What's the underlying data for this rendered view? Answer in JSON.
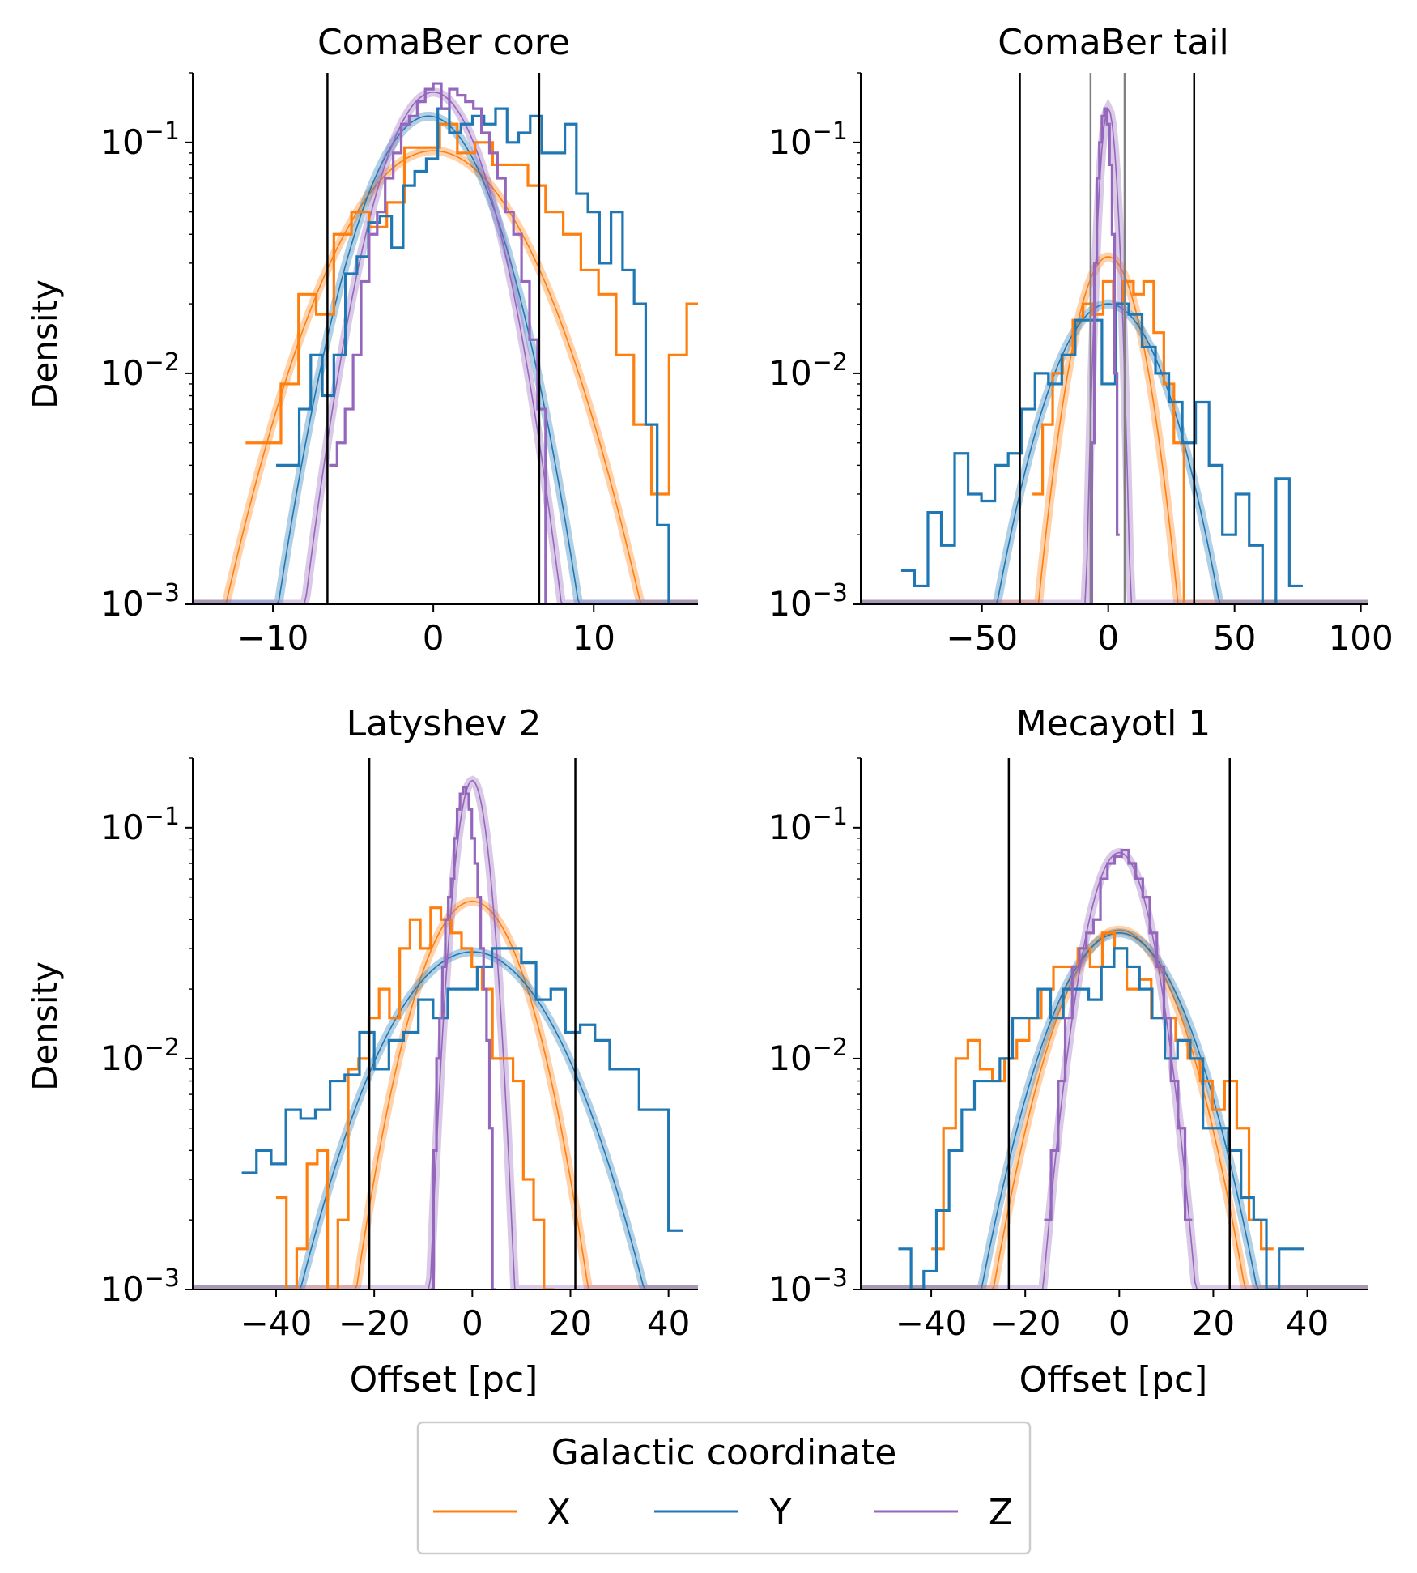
{
  "figure": {
    "y_axis_label": "Density",
    "x_axis_label": "Offset [pc]"
  },
  "legend": {
    "title": "Galactic coordinate",
    "items": [
      {
        "label": "X",
        "color": "#ff7f0e"
      },
      {
        "label": "Y",
        "color": "#1f77b4"
      },
      {
        "label": "Z",
        "color": "#9467bd"
      }
    ]
  },
  "chart_data": [
    {
      "type": "histogram+line",
      "title": "ComaBer core",
      "xlabel": "",
      "ylabel": "Density",
      "yscale": "log",
      "xlim": [
        -15,
        16.5
      ],
      "ylim": [
        0.001,
        0.2
      ],
      "xticks": [
        {
          "v": -10,
          "l": "−10"
        },
        {
          "v": 0,
          "l": "0"
        },
        {
          "v": 10,
          "l": "10"
        }
      ],
      "vlines": [
        {
          "x": -6.6,
          "color": "#000000"
        },
        {
          "x": 6.6,
          "color": "#000000"
        }
      ],
      "curves": [
        {
          "series": "X",
          "color": "#ff7f0e",
          "mu": 0,
          "sigma": 4.3,
          "amp": 0.092
        },
        {
          "series": "Y",
          "color": "#1f77b4",
          "mu": -0.3,
          "sigma": 3.0,
          "amp": 0.13
        },
        {
          "series": "Z",
          "color": "#9467bd",
          "mu": 0,
          "sigma": 2.5,
          "amp": 0.165
        }
      ],
      "histograms": [
        {
          "series": "X",
          "color": "#ff7f0e",
          "x0": -11.7,
          "width": 1.1,
          "values": [
            0.005,
            0.005,
            0.009,
            0.022,
            0.018,
            0.04,
            0.05,
            0.043,
            0.055,
            0.095,
            0.095,
            0.12,
            0.09,
            0.1,
            0.08,
            0.08,
            0.065,
            0.05,
            0.04,
            0.028,
            0.022,
            0.012,
            0.006,
            0.003,
            0.012,
            0.02,
            0.017,
            0.0023
          ]
        },
        {
          "series": "Y",
          "color": "#1f77b4",
          "x0": -9.8,
          "width": 0.72,
          "values": [
            0.004,
            0.004,
            0.007,
            0.012,
            0.008,
            0.012,
            0.027,
            0.032,
            0.045,
            0.048,
            0.035,
            0.065,
            0.075,
            0.085,
            0.14,
            0.11,
            0.12,
            0.13,
            0.12,
            0.14,
            0.1,
            0.11,
            0.13,
            0.09,
            0.09,
            0.12,
            0.06,
            0.05,
            0.03,
            0.05,
            0.028,
            0.02,
            0.006,
            0.0022,
            0.001
          ]
        },
        {
          "series": "Z",
          "color": "#9467bd",
          "x0": -6.5,
          "width": 0.5,
          "values": [
            0.004,
            0.005,
            0.007,
            0.012,
            0.025,
            0.04,
            0.05,
            0.07,
            0.09,
            0.12,
            0.13,
            0.15,
            0.17,
            0.18,
            0.14,
            0.17,
            0.16,
            0.15,
            0.14,
            0.11,
            0.09,
            0.07,
            0.05,
            0.04,
            0.025,
            0.014,
            0.007,
            0.001
          ]
        }
      ]
    },
    {
      "type": "histogram+line",
      "title": "ComaBer tail",
      "xlabel": "",
      "ylabel": "",
      "yscale": "log",
      "xlim": [
        -98,
        103
      ],
      "ylim": [
        0.001,
        0.2
      ],
      "xticks": [
        {
          "v": -50,
          "l": "−50"
        },
        {
          "v": 0,
          "l": "0"
        },
        {
          "v": 50,
          "l": "50"
        },
        {
          "v": 100,
          "l": "100"
        }
      ],
      "vlines": [
        {
          "x": -35,
          "color": "#000000"
        },
        {
          "x": 34,
          "color": "#000000"
        },
        {
          "x": -7,
          "color": "#808080"
        },
        {
          "x": 6.5,
          "color": "#808080"
        }
      ],
      "curves": [
        {
          "series": "X",
          "color": "#ff7f0e",
          "mu": 0,
          "sigma": 10.5,
          "amp": 0.032
        },
        {
          "series": "Y",
          "color": "#1f77b4",
          "mu": 0,
          "sigma": 18,
          "amp": 0.02
        },
        {
          "series": "Z",
          "color": "#9467bd",
          "mu": 0,
          "sigma": 2.8,
          "amp": 0.14
        }
      ],
      "histograms": [
        {
          "series": "X",
          "color": "#ff7f0e",
          "x0": -30,
          "width": 4,
          "values": [
            0.003,
            0.006,
            0.01,
            0.012,
            0.017,
            0.02,
            0.018,
            0.025,
            0.02,
            0.025,
            0.022,
            0.025,
            0.015,
            0.009,
            0.005,
            0.001
          ]
        },
        {
          "series": "Y",
          "color": "#1f77b4",
          "x0": -82,
          "width": 5.3,
          "values": [
            0.0014,
            0.0012,
            0.0025,
            0.0018,
            0.0045,
            0.003,
            0.0028,
            0.004,
            0.0045,
            0.007,
            0.01,
            0.009,
            0.012,
            0.017,
            0.017,
            0.009,
            0.02,
            0.018,
            0.013,
            0.01,
            0.0075,
            0.005,
            0.0075,
            0.004,
            0.002,
            0.003,
            0.0018,
            0.001,
            0.0035,
            0.0012
          ]
        },
        {
          "series": "Z",
          "color": "#9467bd",
          "x0": -7.5,
          "width": 1,
          "values": [
            0.001,
            0.005,
            0.03,
            0.07,
            0.1,
            0.13,
            0.14,
            0.12,
            0.08,
            0.04,
            0.01,
            0.002
          ]
        }
      ]
    },
    {
      "type": "histogram+line",
      "title": "Latyshev 2",
      "xlabel": "Offset [pc]",
      "ylabel": "Density",
      "yscale": "log",
      "xlim": [
        -57,
        46
      ],
      "ylim": [
        0.001,
        0.2
      ],
      "xticks": [
        {
          "v": -40,
          "l": "−40"
        },
        {
          "v": -20,
          "l": "−20"
        },
        {
          "v": 0,
          "l": "0"
        },
        {
          "v": 20,
          "l": "20"
        },
        {
          "v": 40,
          "l": "40"
        }
      ],
      "vlines": [
        {
          "x": -21,
          "color": "#000000"
        },
        {
          "x": 21,
          "color": "#000000"
        }
      ],
      "curves": [
        {
          "series": "X",
          "color": "#ff7f0e",
          "mu": 0,
          "sigma": 8.5,
          "amp": 0.048
        },
        {
          "series": "Y",
          "color": "#1f77b4",
          "mu": 0,
          "sigma": 13.5,
          "amp": 0.029
        },
        {
          "series": "Z",
          "color": "#9467bd",
          "mu": 0,
          "sigma": 2.7,
          "amp": 0.16
        }
      ],
      "histograms": [
        {
          "series": "X",
          "color": "#ff7f0e",
          "x0": -40,
          "width": 2.1,
          "values": [
            0.0025,
            0.001,
            0.0015,
            0.0035,
            0.004,
            0.001,
            0.002,
            0.009,
            0.01,
            0.015,
            0.02,
            0.015,
            0.03,
            0.04,
            0.03,
            0.045,
            0.04,
            0.035,
            0.03,
            0.025,
            0.02,
            0.01,
            0.01,
            0.008,
            0.003,
            0.002,
            0.001
          ]
        },
        {
          "series": "Y",
          "color": "#1f77b4",
          "x0": -47,
          "width": 3,
          "values": [
            0.0032,
            0.004,
            0.0035,
            0.006,
            0.0055,
            0.006,
            0.008,
            0.0085,
            0.013,
            0.009,
            0.012,
            0.013,
            0.018,
            0.015,
            0.02,
            0.02,
            0.025,
            0.03,
            0.03,
            0.026,
            0.018,
            0.02,
            0.013,
            0.014,
            0.012,
            0.009,
            0.009,
            0.006,
            0.006,
            0.0018
          ]
        },
        {
          "series": "Z",
          "color": "#9467bd",
          "x0": -8.5,
          "width": 0.6,
          "values": [
            0.001,
            0.004,
            0.01,
            0.015,
            0.025,
            0.04,
            0.05,
            0.06,
            0.09,
            0.12,
            0.14,
            0.15,
            0.14,
            0.12,
            0.09,
            0.07,
            0.05,
            0.03,
            0.02,
            0.012,
            0.005,
            0.001
          ]
        }
      ]
    },
    {
      "type": "histogram+line",
      "title": "Mecayotl 1",
      "xlabel": "Offset [pc]",
      "ylabel": "",
      "yscale": "log",
      "xlim": [
        -55,
        53
      ],
      "ylim": [
        0.001,
        0.2
      ],
      "xticks": [
        {
          "v": -40,
          "l": "−40"
        },
        {
          "v": -20,
          "l": "−20"
        },
        {
          "v": 0,
          "l": "0"
        },
        {
          "v": 20,
          "l": "20"
        },
        {
          "v": 40,
          "l": "40"
        }
      ],
      "vlines": [
        {
          "x": -23.5,
          "color": "#000000"
        },
        {
          "x": 23.5,
          "color": "#000000"
        }
      ],
      "curves": [
        {
          "series": "X",
          "color": "#ff7f0e",
          "mu": 0,
          "sigma": 10,
          "amp": 0.036
        },
        {
          "series": "Y",
          "color": "#1f77b4",
          "mu": 0,
          "sigma": 11,
          "amp": 0.035
        },
        {
          "series": "Z",
          "color": "#9467bd",
          "mu": 0,
          "sigma": 5.5,
          "amp": 0.078
        }
      ],
      "histograms": [
        {
          "series": "X",
          "color": "#ff7f0e",
          "x0": -40,
          "width": 2.6,
          "values": [
            0.0015,
            0.005,
            0.01,
            0.012,
            0.009,
            0.008,
            0.01,
            0.012,
            0.015,
            0.02,
            0.025,
            0.025,
            0.03,
            0.025,
            0.035,
            0.03,
            0.02,
            0.022,
            0.015,
            0.015,
            0.012,
            0.01,
            0.008,
            0.006,
            0.008,
            0.005,
            0.002,
            0.0015
          ]
        },
        {
          "series": "Y",
          "color": "#1f77b4",
          "x0": -47,
          "width": 2.7,
          "values": [
            0.0015,
            0.001,
            0.0012,
            0.0022,
            0.004,
            0.006,
            0.008,
            0.008,
            0.01,
            0.015,
            0.015,
            0.02,
            0.015,
            0.02,
            0.02,
            0.018,
            0.025,
            0.03,
            0.025,
            0.02,
            0.015,
            0.01,
            0.012,
            0.01,
            0.005,
            0.005,
            0.004,
            0.0025,
            0.002,
            0.001,
            0.0015,
            0.0015
          ]
        },
        {
          "series": "Z",
          "color": "#9467bd",
          "x0": -16,
          "width": 1.5,
          "values": [
            0.002,
            0.004,
            0.008,
            0.015,
            0.025,
            0.03,
            0.035,
            0.04,
            0.06,
            0.07,
            0.075,
            0.08,
            0.07,
            0.06,
            0.05,
            0.035,
            0.025,
            0.015,
            0.008,
            0.005,
            0.002
          ]
        }
      ]
    }
  ]
}
